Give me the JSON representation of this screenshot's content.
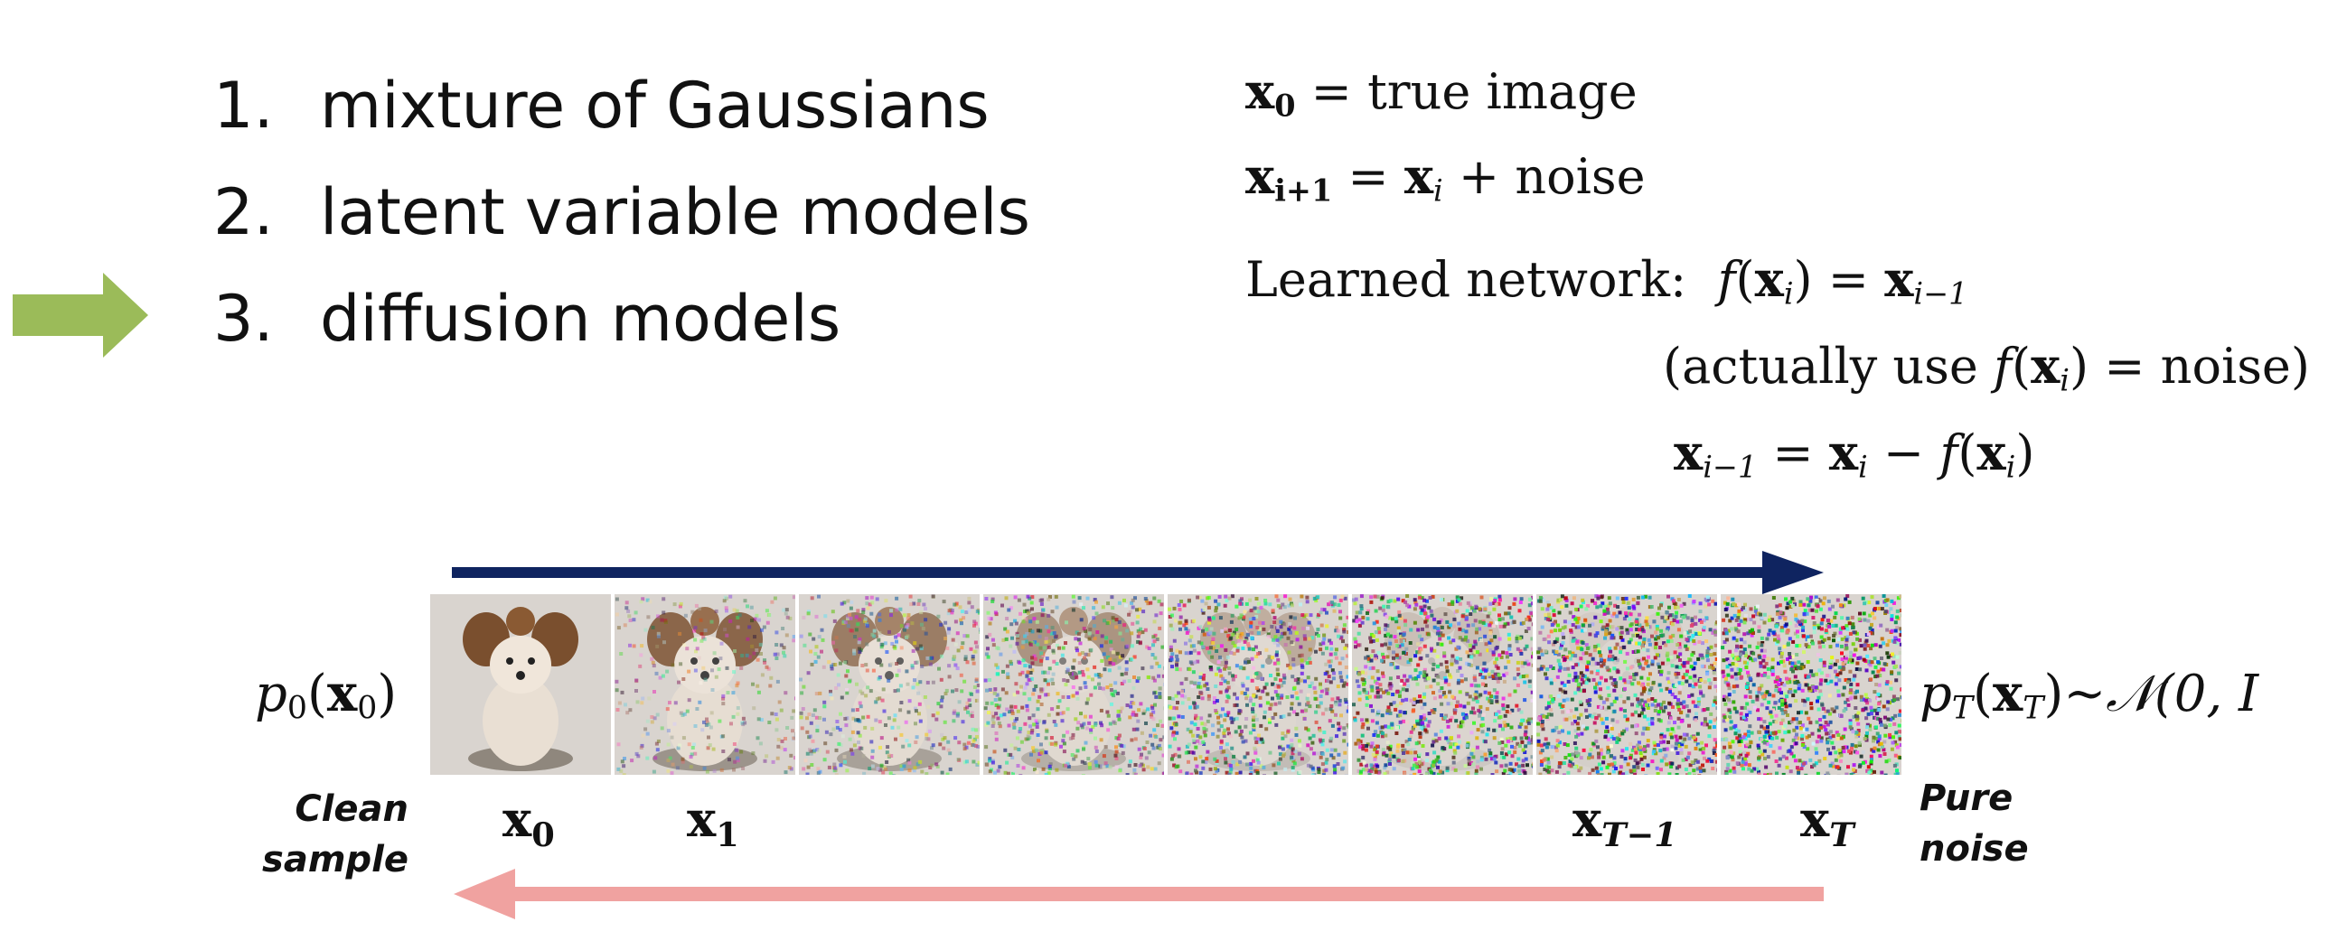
{
  "list": {
    "items": [
      {
        "num": "1.",
        "text": "mixture of Gaussians"
      },
      {
        "num": "2.",
        "text": "latent variable models"
      },
      {
        "num": "3.",
        "text": "diffusion models"
      }
    ],
    "current_index": 2
  },
  "equations": {
    "eq1": {
      "lhs": "x",
      "lhs_sub": "0",
      "rel": " = ",
      "rhs": "true image"
    },
    "eq2": {
      "lhs": "x",
      "lhs_sub": "i+1",
      "rel": " = ",
      "rhs_var": "x",
      "rhs_sub": "i",
      "rhs_tail": " + noise"
    },
    "eq3": {
      "label": "Learned network:",
      "f": "f",
      "arg": "x",
      "arg_sub": "i",
      "rel": " = ",
      "rhs": "x",
      "rhs_sub": "i−1"
    },
    "eq4": {
      "pre": "(actually use ",
      "f": "f",
      "arg": "x",
      "arg_sub": "i",
      "post": ") = noise)"
    },
    "eq5": {
      "lhs": "x",
      "lhs_sub": "i−1",
      "rel": " = ",
      "a": "x",
      "a_sub": "i",
      "minus": " − ",
      "f": "f",
      "arg": "x",
      "arg_sub": "i"
    }
  },
  "diagram": {
    "left_dist": {
      "p": "p",
      "p_sub": "0",
      "x": "x",
      "x_sub": "0"
    },
    "right_dist": {
      "p": "p",
      "p_sub": "T",
      "x": "x",
      "x_sub": "T",
      "tail": "~𝒩(0, I"
    },
    "clean_label": [
      "Clean",
      "sample"
    ],
    "noise_label": [
      "Pure",
      "noise"
    ],
    "step_labels": [
      {
        "var": "x",
        "sub": "0"
      },
      {
        "var": "x",
        "sub": "1"
      },
      {
        "var": "x",
        "sub": "T−1"
      },
      {
        "var": "x",
        "sub": "T"
      }
    ],
    "noise_levels": [
      0.0,
      0.18,
      0.35,
      0.52,
      0.7,
      0.85,
      0.94,
      1.0
    ],
    "forward_arrow_color": "#0f2460",
    "reverse_arrow_color": "#f0a2a0",
    "pointer_arrow_color": "#9bbb59"
  }
}
